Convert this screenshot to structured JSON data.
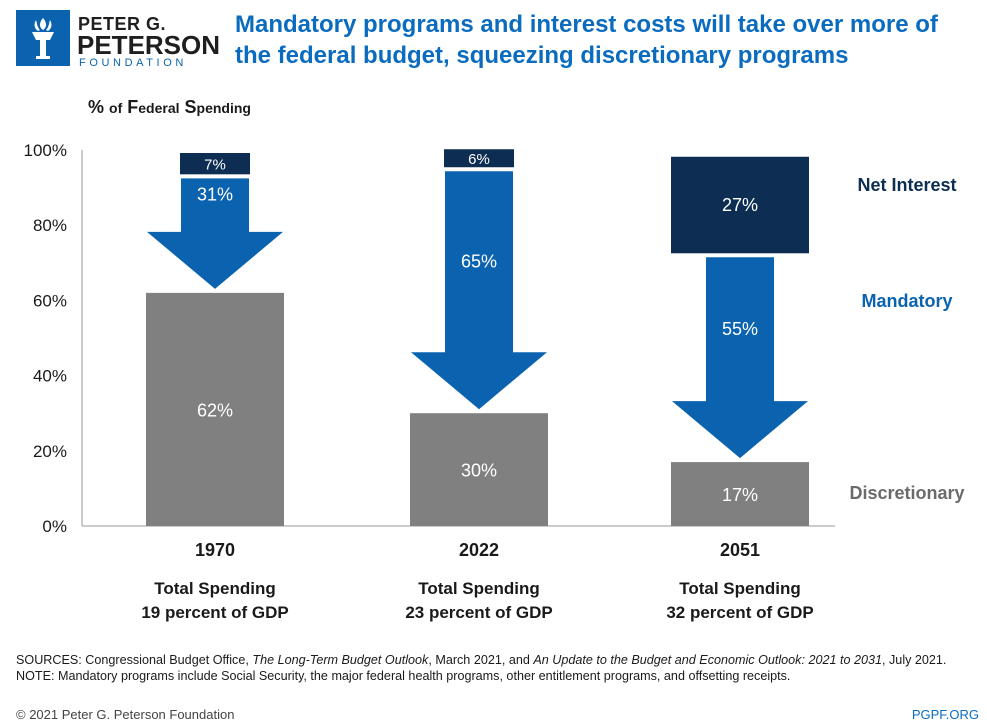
{
  "logo": {
    "line1": "PETER G.",
    "line2": "PETERSON",
    "line3": "FOUNDATION"
  },
  "header": {
    "title": "Mandatory programs and interest costs will take over more of the federal budget, squeezing discretionary programs",
    "subtitle_pct": "%",
    "subtitle_of": "of",
    "subtitle_f": "F",
    "subtitle_ederal": "ederal",
    "subtitle_s": "S",
    "subtitle_pending": "pending"
  },
  "chart_data": {
    "type": "bar",
    "ylabel": "% of Federal Spending",
    "ylim": [
      0,
      100
    ],
    "yticks": [
      "0%",
      "20%",
      "40%",
      "60%",
      "80%",
      "100%"
    ],
    "categories": [
      "1970",
      "2022",
      "2051"
    ],
    "category_notes": [
      [
        "Total Spending",
        "19 percent of GDP"
      ],
      [
        "Total Spending",
        "23 percent of GDP"
      ],
      [
        "Total Spending",
        "32 percent of GDP"
      ]
    ],
    "series": [
      {
        "name": "Discretionary",
        "values": [
          62,
          30,
          17
        ],
        "labels": [
          "62%",
          "30%",
          "17%"
        ],
        "color": "#808080"
      },
      {
        "name": "Mandatory",
        "values": [
          31,
          65,
          55
        ],
        "labels": [
          "31%",
          "65%",
          "55%"
        ],
        "color": "#0b63b0"
      },
      {
        "name": "Net Interest",
        "values": [
          7,
          6,
          27
        ],
        "labels": [
          "7%",
          "6%",
          "27%"
        ],
        "color": "#0d2e52"
      }
    ],
    "legend": "right, aligned with segments"
  },
  "footer": {
    "sources_prefix": "SOURCES: Congressional Budget Office, ",
    "sources_title1": "The Long-Term Budget Outlook",
    "sources_mid": ", March 2021, and ",
    "sources_title2": "An Update to the Budget and Economic Outlook: 2021 to 2031",
    "sources_suffix": ", July 2021.",
    "note": "NOTE: Mandatory programs include Social Security, the major federal health programs, other entitlement programs, and offsetting receipts.",
    "copyright": "© 2021 Peter G. Peterson Foundation",
    "site": "PGPF.ORG"
  }
}
